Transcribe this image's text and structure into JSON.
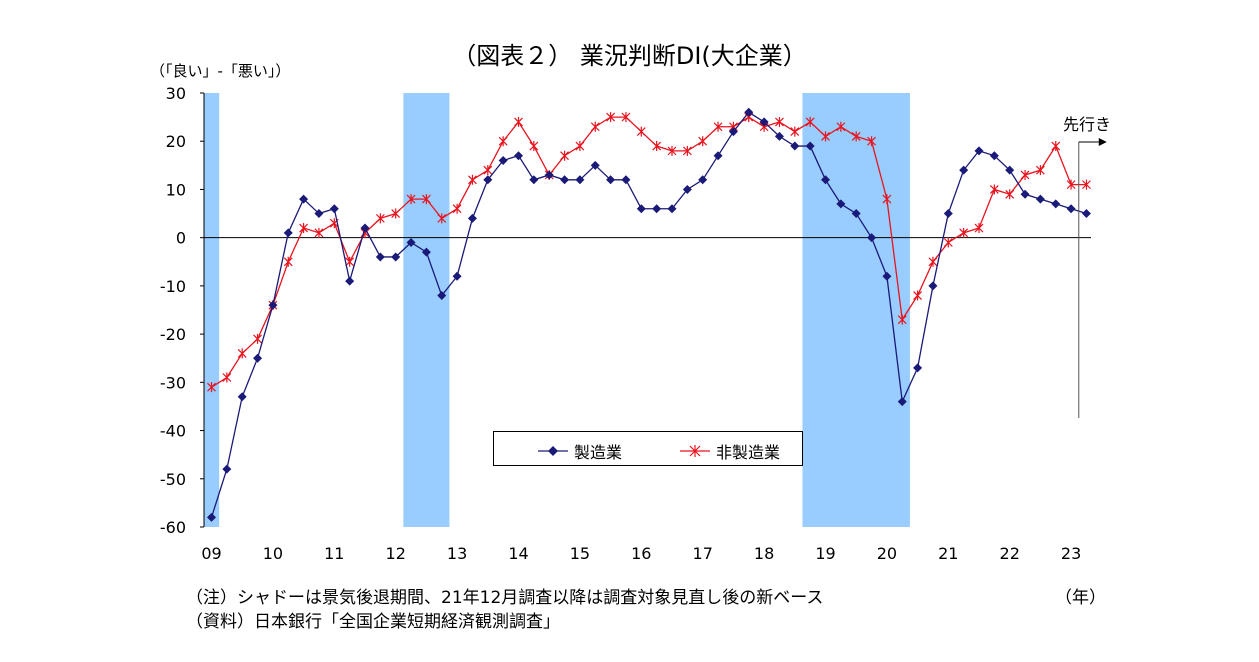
{
  "title": "（図表２） 業況判断DI(大企業）",
  "y_unit": "（「良い」-「悪い」）",
  "x_unit": "（年）",
  "outlook_label": "先行き",
  "notes": [
    "（注）シャドーは景気後退期間、21年12月調査以降は調査対象見直し後の新ベース",
    "（資料）日本銀行「全国企業短期経済観測調査」"
  ],
  "colors": {
    "manufacturing": "#1a1a78",
    "non_manufacturing": "#e8141e",
    "shade": "#99ccff",
    "axis": "#000000"
  },
  "chart_data": {
    "type": "line",
    "title": "（図表２） 業況判断DI(大企業）",
    "ylabel": "（「良い」-「悪い」）",
    "xlabel": "（年）",
    "ylim": [
      -60,
      30
    ],
    "y_ticks": [
      30,
      20,
      10,
      0,
      -10,
      -20,
      -30,
      -40,
      -50,
      -60
    ],
    "x_ticks": [
      "09",
      "10",
      "11",
      "12",
      "13",
      "14",
      "15",
      "16",
      "17",
      "18",
      "19",
      "20",
      "21",
      "22",
      "23"
    ],
    "legend_position": "inside-bottom-center",
    "recession_shading": [
      {
        "from": "2009Q1",
        "to": "2009Q1"
      },
      {
        "from": "2012Q2",
        "to": "2012Q4"
      },
      {
        "from": "2018Q4",
        "to": "2020Q2"
      }
    ],
    "x": [
      "2009Q1",
      "2009Q2",
      "2009Q3",
      "2009Q4",
      "2010Q1",
      "2010Q2",
      "2010Q3",
      "2010Q4",
      "2011Q1",
      "2011Q2",
      "2011Q3",
      "2011Q4",
      "2012Q1",
      "2012Q2",
      "2012Q3",
      "2012Q4",
      "2013Q1",
      "2013Q2",
      "2013Q3",
      "2013Q4",
      "2014Q1",
      "2014Q2",
      "2014Q3",
      "2014Q4",
      "2015Q1",
      "2015Q2",
      "2015Q3",
      "2015Q4",
      "2016Q1",
      "2016Q2",
      "2016Q3",
      "2016Q4",
      "2017Q1",
      "2017Q2",
      "2017Q3",
      "2017Q4",
      "2018Q1",
      "2018Q2",
      "2018Q3",
      "2018Q4",
      "2019Q1",
      "2019Q2",
      "2019Q3",
      "2019Q4",
      "2020Q1",
      "2020Q2",
      "2020Q3",
      "2020Q4",
      "2021Q1",
      "2021Q2",
      "2021Q3",
      "2021Q4",
      "2022Q1",
      "2022Q2",
      "2022Q3",
      "2022Q4",
      "2023Q1",
      "2023Q2"
    ],
    "outlook_point": "2023Q2",
    "series": [
      {
        "name": "製造業",
        "marker": "diamond",
        "values": [
          -58,
          -48,
          -33,
          -25,
          -14,
          1,
          8,
          5,
          6,
          -9,
          2,
          -4,
          -4,
          -1,
          -3,
          -12,
          -8,
          4,
          12,
          16,
          17,
          12,
          13,
          12,
          12,
          15,
          12,
          12,
          6,
          6,
          6,
          10,
          12,
          17,
          22,
          26,
          24,
          21,
          19,
          19,
          12,
          7,
          5,
          0,
          -8,
          -34,
          -27,
          -10,
          5,
          14,
          18,
          17,
          14,
          9,
          8,
          7,
          6,
          5
        ]
      },
      {
        "name": "非製造業",
        "marker": "cross",
        "values": [
          -31,
          -29,
          -24,
          -21,
          -14,
          -5,
          2,
          1,
          3,
          -5,
          1,
          4,
          5,
          8,
          8,
          4,
          6,
          12,
          14,
          20,
          24,
          19,
          13,
          17,
          19,
          23,
          25,
          25,
          22,
          19,
          18,
          18,
          20,
          23,
          23,
          25,
          23,
          24,
          22,
          24,
          21,
          23,
          21,
          20,
          8,
          -17,
          -12,
          -5,
          -1,
          1,
          2,
          10,
          9,
          13,
          14,
          19,
          11,
          11
        ]
      }
    ]
  }
}
